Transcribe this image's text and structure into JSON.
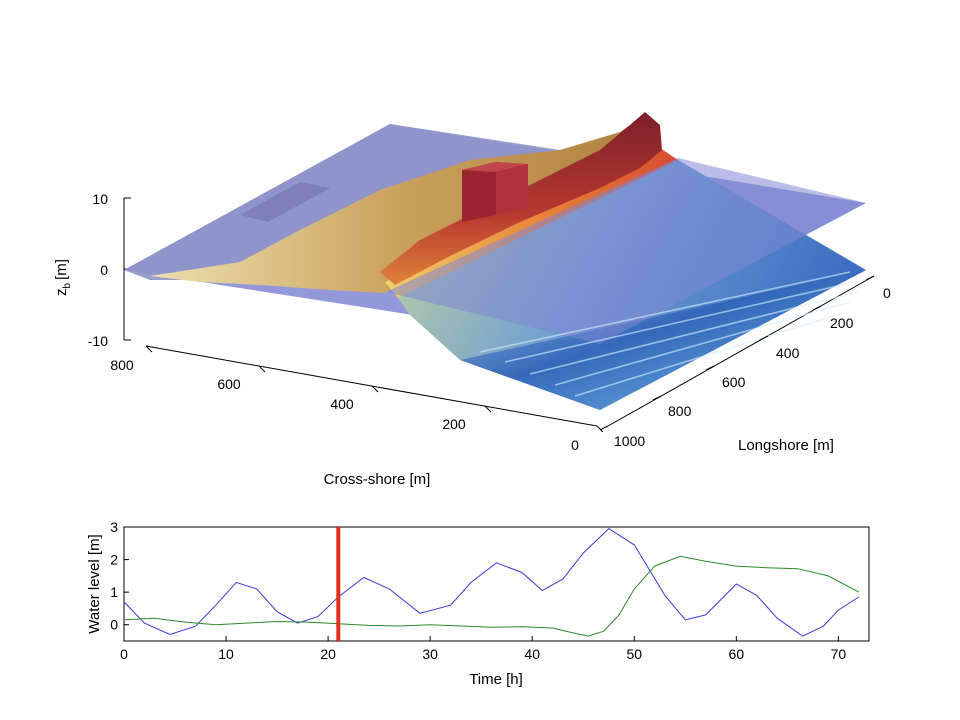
{
  "chart_data": [
    {
      "type": "surface",
      "zlabel": "z",
      "zlabel_sub": "b",
      "zlabel_unit": "[m]",
      "xlabel": "Cross-shore [m]",
      "ylabel": "Longshore [m]",
      "zlim": [
        -10,
        10
      ],
      "xlim": [
        0,
        800
      ],
      "ylim": [
        0,
        1000
      ],
      "z_ticks": [
        "10",
        "0",
        "-10"
      ],
      "x_ticks": [
        "800",
        "600",
        "400",
        "200",
        "0"
      ],
      "y_ticks": [
        "0",
        "200",
        "400",
        "600",
        "800",
        "1000"
      ],
      "water_level_plane": 0.8,
      "colors": {
        "water_plane": "#7f86d4",
        "dune": "#9b2a2e",
        "beach": "#d8b46a",
        "deep_water": "#2d5fb8",
        "shallow_water": "#8fd0ef"
      }
    },
    {
      "type": "line",
      "xlabel": "Time [h]",
      "ylabel": "Water level [m]",
      "xlim": [
        0,
        73
      ],
      "ylim": [
        -0.5,
        3
      ],
      "x_ticks": [
        "0",
        "10",
        "20",
        "30",
        "40",
        "50",
        "60",
        "70"
      ],
      "y_ticks": [
        "3",
        "2",
        "1",
        "0"
      ],
      "time_marker": 21,
      "time_marker_color": "#e0301e",
      "series": [
        {
          "color": "#3a3ad6",
          "x": [
            0,
            2,
            4.5,
            7,
            9,
            11,
            13,
            15,
            17,
            19,
            21,
            23.5,
            26,
            29,
            32,
            34,
            36.5,
            39,
            41,
            43,
            45,
            47.5,
            50,
            53,
            55,
            57,
            60,
            62,
            64,
            66.5,
            68.5,
            70,
            72
          ],
          "y": [
            0.7,
            0.05,
            -0.3,
            -0.05,
            0.6,
            1.3,
            1.1,
            0.4,
            0.05,
            0.25,
            0.85,
            1.45,
            1.1,
            0.35,
            0.6,
            1.3,
            1.9,
            1.6,
            1.05,
            1.4,
            2.2,
            2.95,
            2.45,
            0.9,
            0.15,
            0.3,
            1.25,
            0.9,
            0.2,
            -0.35,
            -0.05,
            0.45,
            0.85
          ]
        },
        {
          "color": "#2a8a2a",
          "x": [
            0,
            3,
            6,
            9,
            12,
            15,
            18,
            21,
            24,
            27,
            30,
            33,
            36,
            39,
            42,
            44,
            45.5,
            47,
            48.5,
            50,
            52,
            54.5,
            57,
            60,
            63,
            66,
            69,
            72
          ],
          "y": [
            0.15,
            0.2,
            0.08,
            0.0,
            0.05,
            0.1,
            0.08,
            0.03,
            -0.02,
            -0.04,
            0.0,
            -0.04,
            -0.08,
            -0.06,
            -0.1,
            -0.25,
            -0.35,
            -0.2,
            0.3,
            1.1,
            1.8,
            2.1,
            1.95,
            1.8,
            1.75,
            1.72,
            1.5,
            1.0
          ]
        }
      ]
    }
  ]
}
